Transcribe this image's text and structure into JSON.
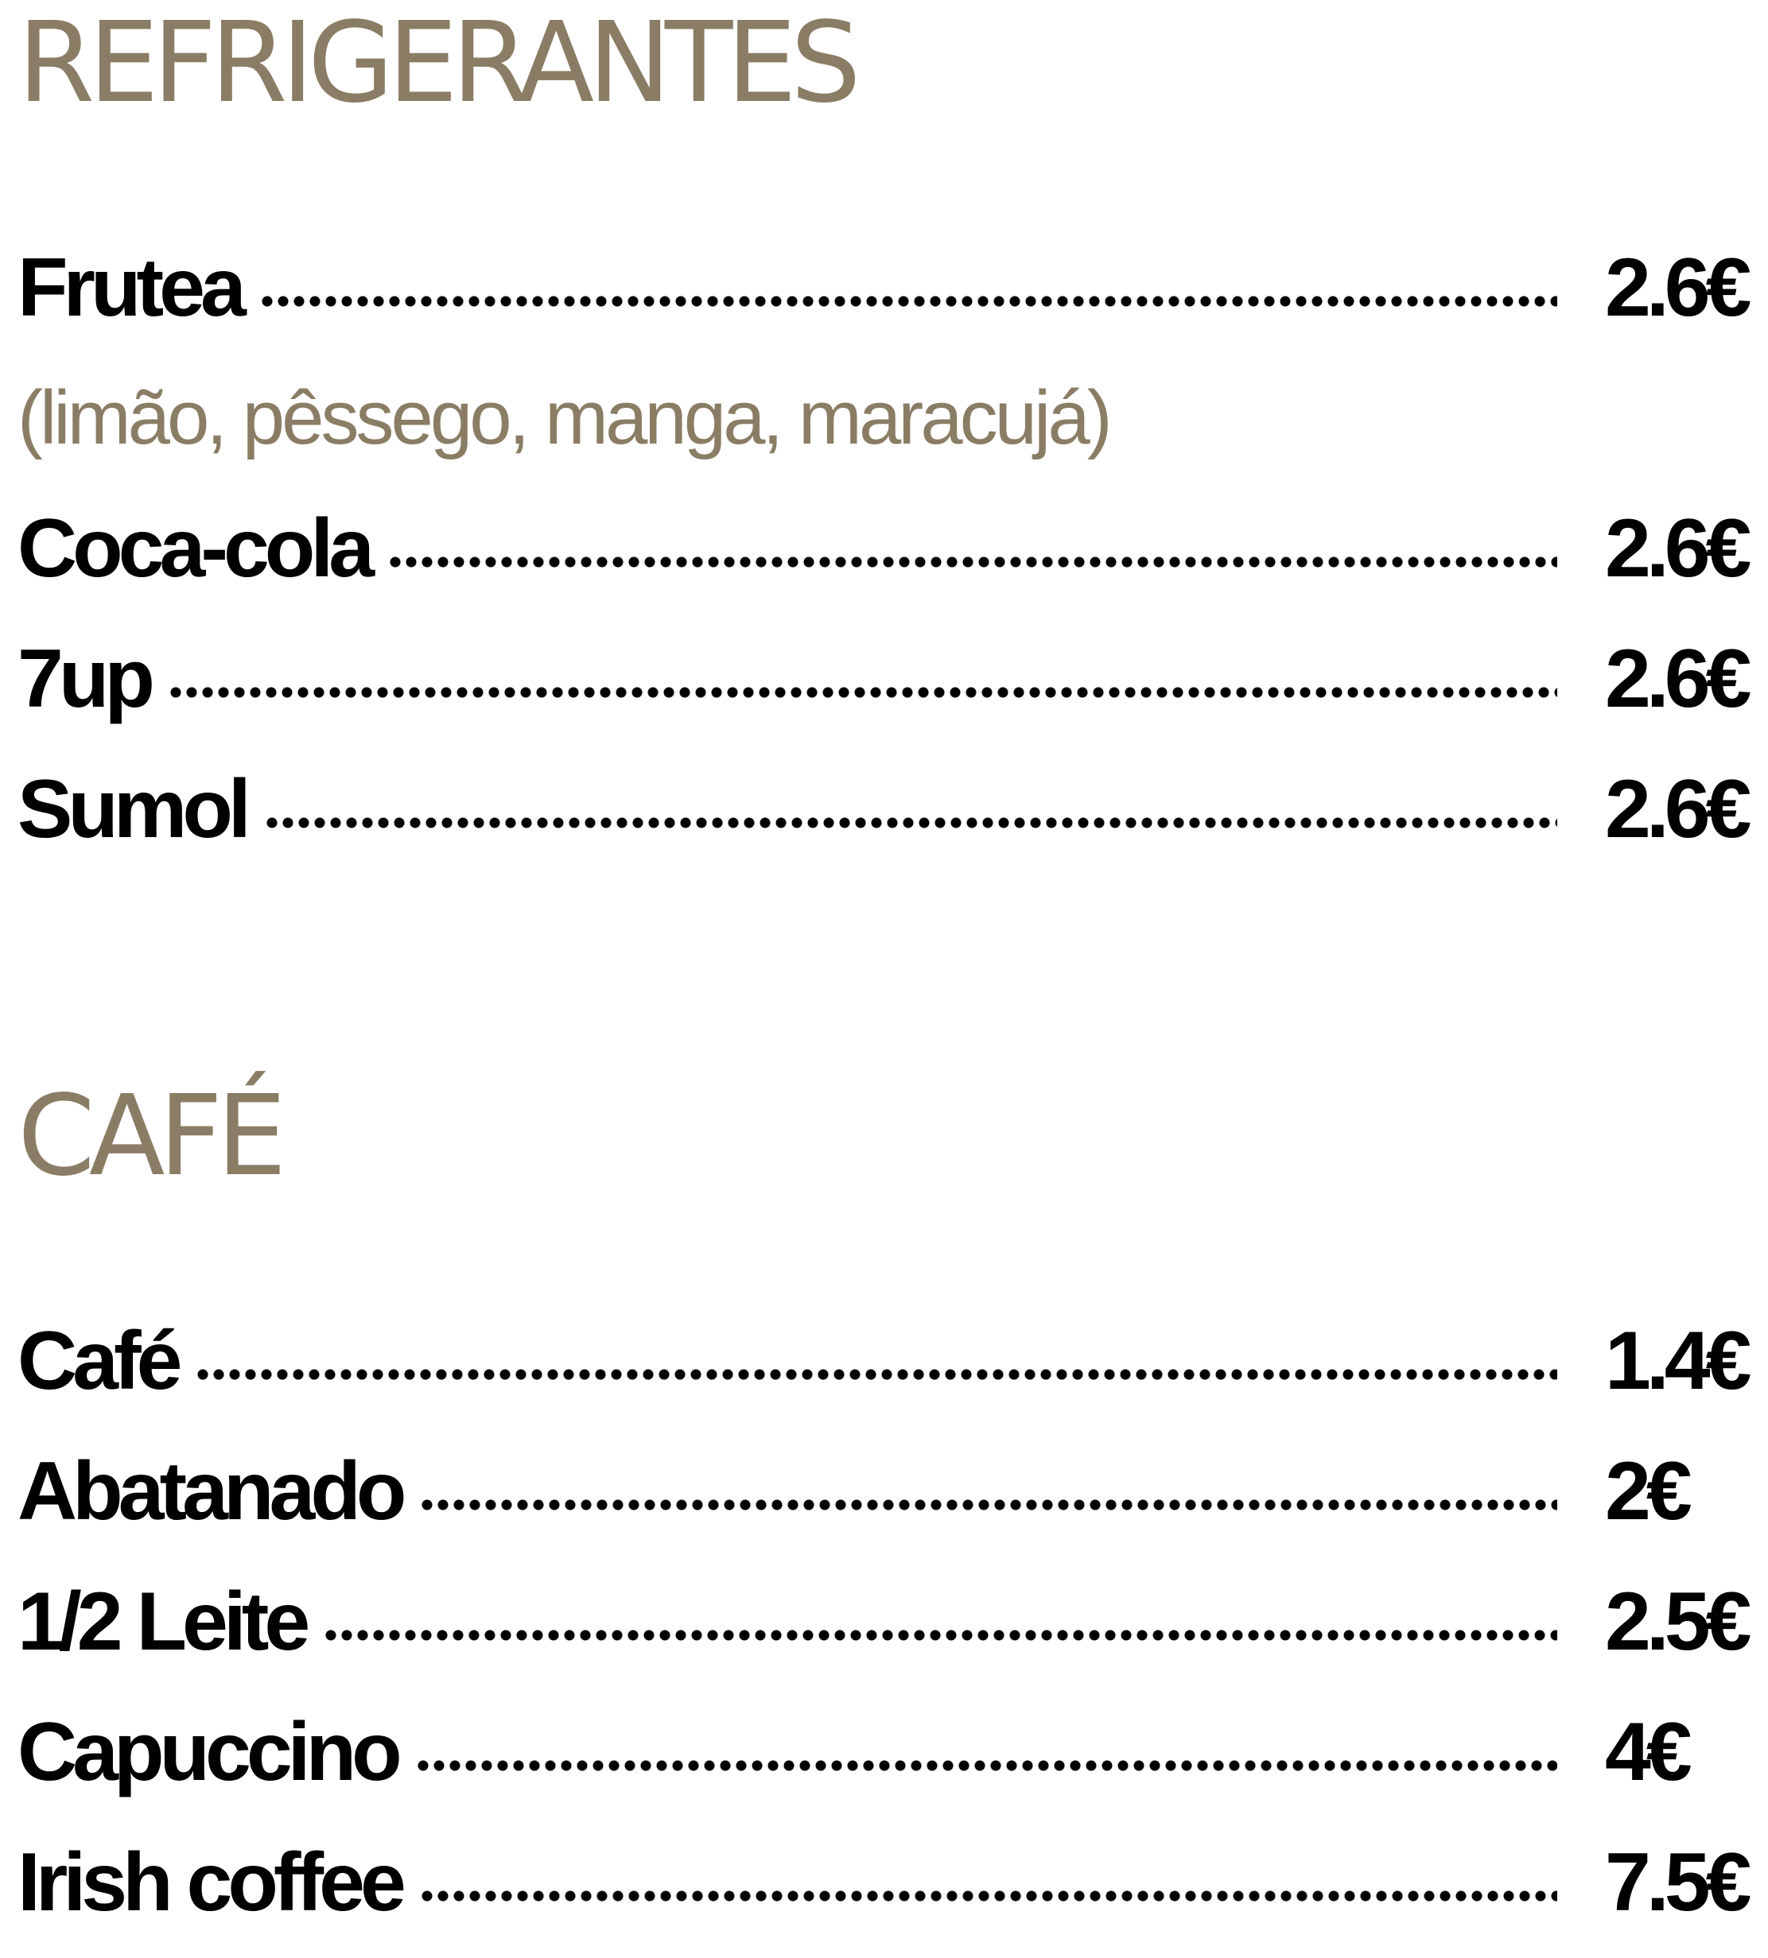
{
  "sections": [
    {
      "title": "REFRIGERANTES",
      "items": [
        {
          "name": "Frutea",
          "price": "2.6€",
          "note": "(limão, pêssego, manga, maracujá)"
        },
        {
          "name": "Coca-cola",
          "price": "2.6€"
        },
        {
          "name": "7up",
          "price": "2.6€"
        },
        {
          "name": "Sumol",
          "price": "2.6€"
        }
      ]
    },
    {
      "title": "CAFÉ",
      "items": [
        {
          "name": "Café",
          "price": "1.4€"
        },
        {
          "name": "Abatanado",
          "price": "2€"
        },
        {
          "name": "1/2 Leite",
          "price": "2.5€"
        },
        {
          "name": "Capuccino",
          "price": "4€"
        },
        {
          "name": "Irish coffee",
          "price": "7.5€"
        }
      ]
    }
  ]
}
